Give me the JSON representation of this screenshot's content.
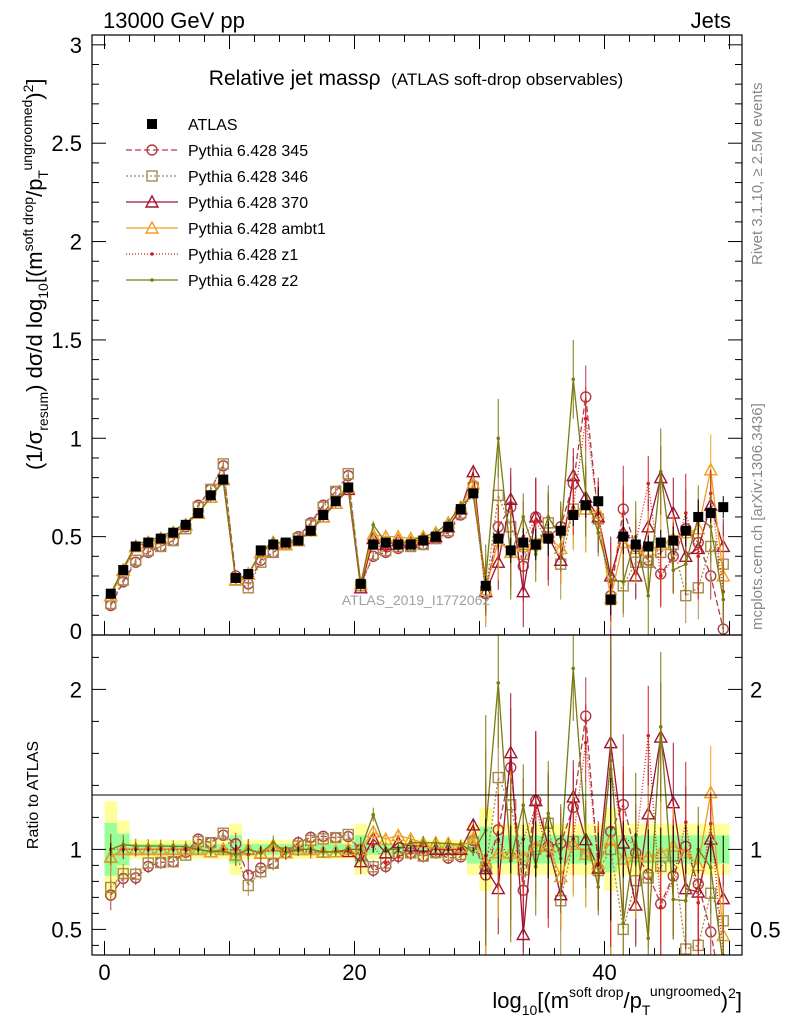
{
  "header": {
    "left": "13000 GeV pp",
    "right": "Jets"
  },
  "side_texts": {
    "rivet": "Rivet 3.1.10, ≥ 2.5M events",
    "mcplots": "mcplots.cern.ch [arXiv:1306.3436]"
  },
  "watermark": "ATLAS_2019_I1772062",
  "chart_data": {
    "type": "line",
    "title": "Relative jet massρ",
    "subtitle": "(ATLAS soft-drop observables)",
    "xlabel": "log10[(m^soft drop/pT^ungroomed)^2]",
    "ylabel_main": "(1/σresum) dσ/d log10[(m^soft drop/pT^ungroomed)^2]",
    "ylabel_ratio": "Ratio to ATLAS",
    "xlim": [
      -1,
      51
    ],
    "ylim_main": [
      0,
      3.05
    ],
    "ylim_ratio": [
      0.34,
      2.34
    ],
    "main_y_ticks": [
      "0.5",
      "1",
      "1.5",
      "2",
      "2.5",
      "3"
    ],
    "ratio_y_ticks": [
      "0.5",
      "1",
      "2"
    ],
    "x_ticks": [
      "0",
      "20",
      "40"
    ],
    "x": [
      0.5,
      1.5,
      2.5,
      3.5,
      4.5,
      5.5,
      6.5,
      7.5,
      8.5,
      9.5,
      10.5,
      11.5,
      12.5,
      13.5,
      14.5,
      15.5,
      16.5,
      17.5,
      18.5,
      19.5,
      20.5,
      21.5,
      22.5,
      23.5,
      24.5,
      25.5,
      26.5,
      27.5,
      28.5,
      29.5,
      30.5,
      31.5,
      32.5,
      33.5,
      34.5,
      35.5,
      36.5,
      37.5,
      38.5,
      39.5,
      40.5,
      41.5,
      42.5,
      43.5,
      44.5,
      45.5,
      46.5,
      47.5,
      48.5,
      49.5
    ],
    "legend_position": "top-left",
    "series": [
      {
        "name": "ATLAS",
        "color": "#000000",
        "marker": "filled-square",
        "dash": "",
        "data": true,
        "values": [
          0.21,
          0.33,
          0.45,
          0.47,
          0.49,
          0.52,
          0.56,
          0.62,
          0.71,
          0.79,
          0.29,
          0.31,
          0.43,
          0.46,
          0.47,
          0.48,
          0.53,
          0.61,
          0.68,
          0.75,
          0.26,
          0.46,
          0.47,
          0.46,
          0.46,
          0.48,
          0.5,
          0.55,
          0.64,
          0.72,
          0.25,
          0.49,
          0.43,
          0.47,
          0.46,
          0.49,
          0.53,
          0.61,
          0.66,
          0.68,
          0.18,
          0.5,
          0.46,
          0.45,
          0.47,
          0.48,
          0.53,
          0.6,
          0.62,
          0.65
        ]
      },
      {
        "name": "Pythia 6.428 345",
        "color": "#b03a48",
        "marker": "circle",
        "dash": "6,3",
        "data": false,
        "values": [
          0.15,
          0.27,
          0.37,
          0.42,
          0.45,
          0.48,
          0.55,
          0.66,
          0.74,
          0.86,
          0.3,
          0.26,
          0.38,
          0.42,
          0.46,
          0.5,
          0.57,
          0.66,
          0.73,
          0.81,
          0.26,
          0.4,
          0.42,
          0.44,
          0.45,
          0.46,
          0.49,
          0.52,
          0.61,
          0.76,
          0.21,
          0.55,
          0.65,
          0.35,
          0.6,
          0.5,
          0.55,
          0.77,
          1.21,
          0.6,
          0.2,
          0.64,
          0.45,
          0.38,
          0.31,
          0.4,
          0.54,
          0.47,
          0.3,
          0.03
        ]
      },
      {
        "name": "Pythia 6.428 346",
        "color": "#a88a4c",
        "marker": "square",
        "dash": "2,2",
        "data": false,
        "values": [
          0.16,
          0.28,
          0.38,
          0.43,
          0.45,
          0.48,
          0.54,
          0.65,
          0.74,
          0.87,
          0.28,
          0.24,
          0.37,
          0.42,
          0.46,
          0.49,
          0.56,
          0.65,
          0.73,
          0.82,
          0.25,
          0.41,
          0.43,
          0.45,
          0.45,
          0.46,
          0.49,
          0.53,
          0.62,
          0.75,
          0.22,
          0.71,
          0.55,
          0.41,
          0.46,
          0.57,
          0.36,
          0.64,
          0.64,
          0.59,
          0.18,
          0.25,
          0.37,
          0.37,
          0.42,
          0.46,
          0.2,
          0.24,
          0.45,
          0.36
        ]
      },
      {
        "name": "Pythia 6.428 370",
        "color": "#a01432",
        "marker": "triangle",
        "dash": "",
        "data": false,
        "values": [
          0.2,
          0.33,
          0.45,
          0.47,
          0.49,
          0.52,
          0.56,
          0.62,
          0.7,
          0.79,
          0.28,
          0.31,
          0.42,
          0.47,
          0.46,
          0.48,
          0.53,
          0.6,
          0.67,
          0.74,
          0.24,
          0.49,
          0.46,
          0.48,
          0.47,
          0.49,
          0.5,
          0.55,
          0.64,
          0.83,
          0.22,
          0.37,
          0.69,
          0.22,
          0.6,
          0.5,
          0.38,
          0.81,
          0.7,
          0.6,
          0.3,
          0.52,
          0.3,
          0.55,
          0.8,
          0.62,
          0.4,
          0.44,
          0.66,
          0.45
        ]
      },
      {
        "name": "Pythia 6.428 ambt1",
        "color": "#f0a020",
        "marker": "triangle",
        "dash": "",
        "data": false,
        "values": [
          0.2,
          0.33,
          0.45,
          0.47,
          0.49,
          0.52,
          0.56,
          0.62,
          0.7,
          0.79,
          0.28,
          0.31,
          0.42,
          0.47,
          0.46,
          0.48,
          0.53,
          0.6,
          0.67,
          0.75,
          0.26,
          0.51,
          0.5,
          0.5,
          0.49,
          0.5,
          0.52,
          0.57,
          0.65,
          0.77,
          0.23,
          0.48,
          0.42,
          0.45,
          0.47,
          0.5,
          0.44,
          0.63,
          0.64,
          0.62,
          0.19,
          0.47,
          0.44,
          0.43,
          0.46,
          0.49,
          0.52,
          0.54,
          0.84,
          0.3
        ]
      },
      {
        "name": "Pythia 6.428 z1",
        "color": "#d42020",
        "marker": "dot",
        "dash": "1,2",
        "data": false,
        "values": [
          0.21,
          0.33,
          0.45,
          0.47,
          0.49,
          0.52,
          0.56,
          0.62,
          0.7,
          0.79,
          0.29,
          0.3,
          0.42,
          0.46,
          0.46,
          0.48,
          0.52,
          0.6,
          0.67,
          0.74,
          0.25,
          0.47,
          0.43,
          0.44,
          0.45,
          0.47,
          0.5,
          0.55,
          0.64,
          0.71,
          0.24,
          0.52,
          0.4,
          0.5,
          0.58,
          0.47,
          0.53,
          0.65,
          1.1,
          0.62,
          0.27,
          0.54,
          0.47,
          0.77,
          0.3,
          0.39,
          0.62,
          0.4,
          0.72,
          0.22
        ]
      },
      {
        "name": "Pythia 6.428 z2",
        "color": "#7a7a10",
        "marker": "dot",
        "dash": "",
        "data": false,
        "values": [
          0.21,
          0.34,
          0.46,
          0.48,
          0.5,
          0.53,
          0.57,
          0.62,
          0.7,
          0.78,
          0.28,
          0.31,
          0.42,
          0.48,
          0.46,
          0.48,
          0.53,
          0.6,
          0.67,
          0.75,
          0.26,
          0.56,
          0.47,
          0.46,
          0.48,
          0.5,
          0.52,
          0.57,
          0.66,
          0.71,
          0.28,
          1.0,
          0.4,
          0.6,
          0.41,
          0.6,
          0.5,
          1.3,
          0.72,
          0.52,
          0.28,
          0.27,
          0.5,
          0.2,
          0.83,
          0.33,
          0.36,
          0.6,
          0.55,
          0.18
        ]
      }
    ]
  }
}
